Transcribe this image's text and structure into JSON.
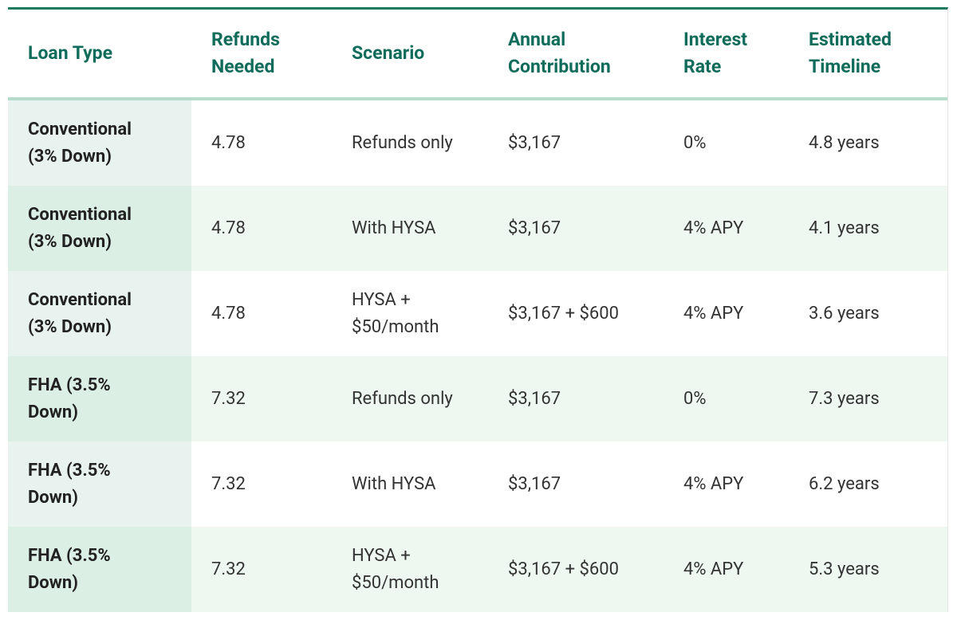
{
  "table": {
    "header": [
      "Loan Type",
      "Refunds Needed",
      "Scenario",
      "Annual Contribution",
      "Interest Rate",
      "Estimated Timeline"
    ],
    "rows": [
      [
        "Conventional (3% Down)",
        "4.78",
        "Refunds only",
        "$3,167",
        "0%",
        "4.8 years"
      ],
      [
        "Conventional (3% Down)",
        "4.78",
        "With HYSA",
        "$3,167",
        "4% APY",
        "4.1 years"
      ],
      [
        "Conventional (3% Down)",
        "4.78",
        "HYSA + $50/month",
        "$3,167 + $600",
        "4% APY",
        "3.6 years"
      ],
      [
        "FHA (3.5% Down)",
        "7.32",
        "Refunds only",
        "$3,167",
        "0%",
        "7.3 years"
      ],
      [
        "FHA (3.5% Down)",
        "7.32",
        "With HYSA",
        "$3,167",
        "4% APY",
        "6.2 years"
      ],
      [
        "FHA (3.5% Down)",
        "7.32",
        "HYSA + $50/month",
        "$3,167 + $600",
        "4% APY",
        "5.3 years"
      ]
    ]
  }
}
